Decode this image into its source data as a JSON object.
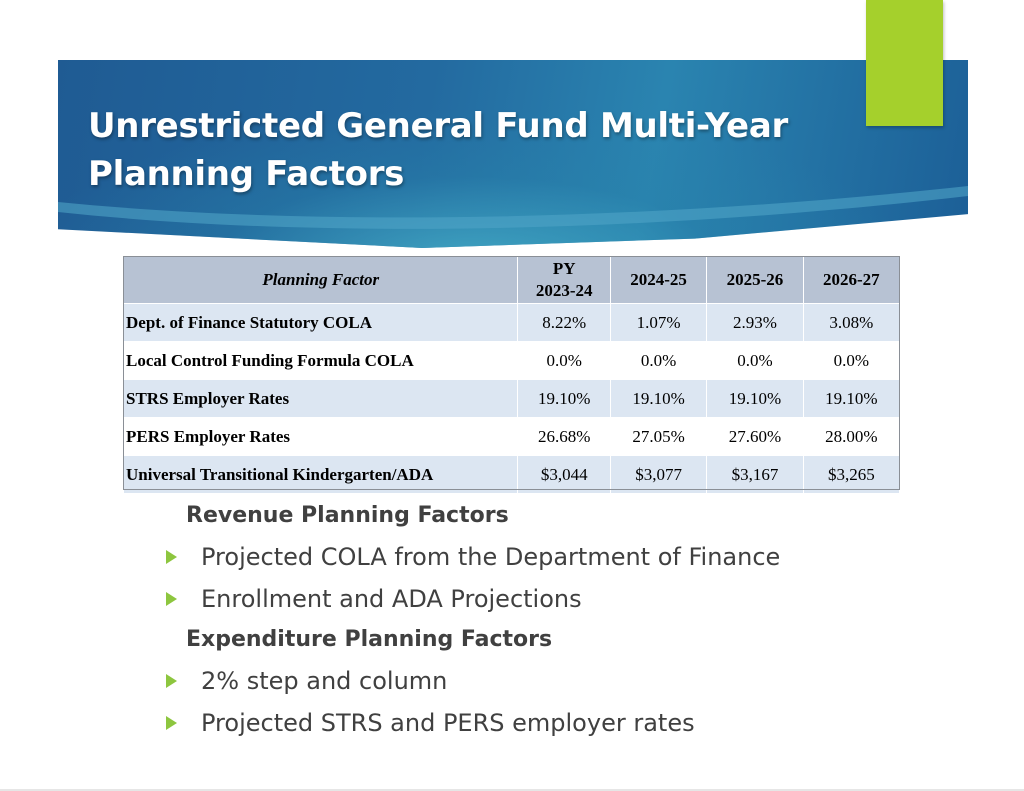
{
  "slide": {
    "title": "Unrestricted General Fund Multi-Year Planning Factors"
  },
  "table": {
    "headers": {
      "factor": "Planning Factor",
      "py_line1": "PY",
      "py_line2": "2023-24",
      "y1": "2024-25",
      "y2": "2025-26",
      "y3": "2026-27"
    },
    "rows": [
      {
        "label": "Dept. of Finance Statutory COLA",
        "py": "8.22%",
        "y1": "1.07%",
        "y2": "2.93%",
        "y3": "3.08%"
      },
      {
        "label": "Local Control Funding Formula COLA",
        "py": "0.0%",
        "y1": "0.0%",
        "y2": "0.0%",
        "y3": "0.0%"
      },
      {
        "label": "STRS Employer Rates",
        "py": "19.10%",
        "y1": "19.10%",
        "y2": "19.10%",
        "y3": "19.10%"
      },
      {
        "label": "PERS Employer Rates",
        "py": "26.68%",
        "y1": "27.05%",
        "y2": "27.60%",
        "y3": "28.00%"
      },
      {
        "label": "Universal Transitional Kindergarten/ADA",
        "py": "$3,044",
        "y1": "$3,077",
        "y2": "$3,167",
        "y3": "$3,265"
      }
    ]
  },
  "content": {
    "revenue_heading": "Revenue Planning Factors",
    "revenue_bullets": [
      "Projected COLA from the Department of Finance",
      "Enrollment and ADA Projections"
    ],
    "expenditure_heading": "Expenditure Planning Factors",
    "expenditure_bullets": [
      "2% step and column",
      "Projected STRS and PERS employer rates"
    ]
  },
  "colors": {
    "accent_green": "#a5d02c",
    "banner_blue": "#236aa0",
    "table_header": "#b7c2d3",
    "table_band": "#dce6f2"
  },
  "icons": {
    "bullet": "triangle-right-icon"
  }
}
